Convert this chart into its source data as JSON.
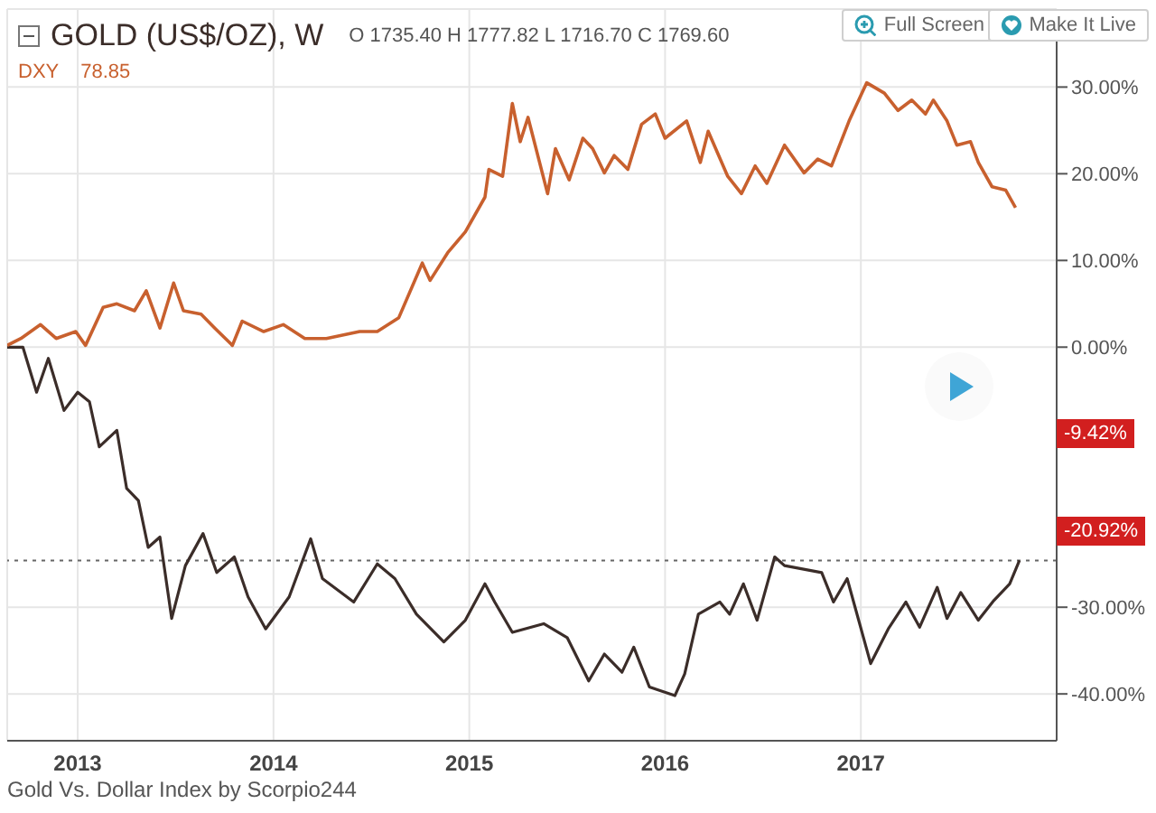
{
  "chart_data": {
    "type": "line",
    "xlim": [
      2012.64,
      2018.0
    ],
    "xticks": [
      2013,
      2014,
      2015,
      2016,
      2017
    ],
    "ylim": [
      -45.4,
      39
    ],
    "yticks": [
      {
        "value": -40,
        "label": "-40.00%"
      },
      {
        "value": -30,
        "label": "-30.00%"
      },
      {
        "value": 0,
        "label": "0.00%"
      },
      {
        "value": 10,
        "label": "10.00%"
      },
      {
        "value": 20,
        "label": "20.00%"
      },
      {
        "value": 30,
        "label": "30.00%"
      }
    ],
    "grid": true,
    "legend": "top left",
    "series": [
      {
        "name": "GOLD (US$/OZ), W",
        "color": "#3b2d29",
        "x": [
          2012.64,
          2012.72,
          2012.79,
          2012.85,
          2012.93,
          2013.0,
          2013.06,
          2013.11,
          2013.2,
          2013.25,
          2013.31,
          2013.36,
          2013.42,
          2013.48,
          2013.55,
          2013.64,
          2013.71,
          2013.8,
          2013.87,
          2013.96,
          2014.08,
          2014.19,
          2014.25,
          2014.41,
          2014.53,
          2014.62,
          2014.73,
          2014.87,
          2014.98,
          2015.08,
          2015.13,
          2015.22,
          2015.38,
          2015.5,
          2015.61,
          2015.69,
          2015.78,
          2015.84,
          2015.92,
          2016.05,
          2016.1,
          2016.17,
          2016.28,
          2016.33,
          2016.4,
          2016.47,
          2016.56,
          2016.61,
          2016.8,
          2016.86,
          2016.93,
          2017.05,
          2017.14,
          2017.23,
          2017.3,
          2017.39,
          2017.44,
          2017.51,
          2017.6,
          2017.68,
          2017.76,
          2017.81
        ],
        "values": [
          0,
          0,
          -5.2,
          -1.3,
          -7.3,
          -5.2,
          -6.3,
          -11.5,
          -9.6,
          -16.3,
          -17.7,
          -23.1,
          -21.9,
          -31.3,
          -25.2,
          -21.5,
          -26.0,
          -24.2,
          -28.8,
          -32.5,
          -28.8,
          -22.1,
          -26.7,
          -29.4,
          -25.0,
          -26.7,
          -30.8,
          -34.0,
          -31.5,
          -27.3,
          -29.4,
          -32.9,
          -31.9,
          -33.5,
          -38.5,
          -35.4,
          -37.5,
          -34.6,
          -39.2,
          -40.2,
          -37.7,
          -30.8,
          -29.4,
          -30.8,
          -27.3,
          -31.5,
          -24.2,
          -25.2,
          -26.0,
          -29.4,
          -26.7,
          -36.5,
          -32.5,
          -29.4,
          -32.3,
          -27.7,
          -31.3,
          -28.3,
          -31.5,
          -29.2,
          -27.3,
          -24.6
        ]
      },
      {
        "name": "DXY",
        "color": "#c8602e",
        "x": [
          2012.64,
          2012.71,
          2012.81,
          2012.89,
          2012.99,
          2013.04,
          2013.13,
          2013.2,
          2013.29,
          2013.35,
          2013.42,
          2013.49,
          2013.54,
          2013.63,
          2013.7,
          2013.79,
          2013.84,
          2013.95,
          2014.05,
          2014.16,
          2014.27,
          2014.44,
          2014.53,
          2014.64,
          2014.76,
          2014.8,
          2014.89,
          2014.98,
          2015.08,
          2015.1,
          2015.17,
          2015.22,
          2015.26,
          2015.3,
          2015.4,
          2015.44,
          2015.51,
          2015.58,
          2015.63,
          2015.69,
          2015.74,
          2015.81,
          2015.88,
          2015.95,
          2016.0,
          2016.11,
          2016.18,
          2016.22,
          2016.32,
          2016.39,
          2016.46,
          2016.52,
          2016.61,
          2016.71,
          2016.78,
          2016.85,
          2016.94,
          2017.03,
          2017.12,
          2017.19,
          2017.26,
          2017.33,
          2017.37,
          2017.44,
          2017.49,
          2017.56,
          2017.6,
          2017.67,
          2017.74,
          2017.79
        ],
        "values": [
          0.2,
          1.0,
          2.6,
          1.0,
          1.8,
          0.2,
          4.6,
          5.0,
          4.2,
          6.5,
          2.2,
          7.4,
          4.2,
          3.8,
          2.2,
          0.2,
          3.0,
          1.8,
          2.6,
          1.0,
          1.0,
          1.8,
          1.8,
          3.4,
          9.7,
          7.7,
          10.9,
          13.3,
          17.3,
          20.5,
          19.7,
          28.1,
          23.7,
          26.5,
          17.7,
          22.9,
          19.3,
          24.1,
          22.9,
          20.1,
          22.1,
          20.5,
          25.7,
          26.9,
          24.1,
          26.1,
          21.3,
          24.9,
          19.7,
          17.7,
          20.9,
          18.9,
          23.3,
          20.1,
          21.7,
          20.9,
          26.1,
          30.5,
          29.3,
          27.3,
          28.5,
          26.9,
          28.5,
          26.1,
          23.3,
          23.7,
          21.3,
          18.5,
          18.1,
          16.1
        ]
      }
    ],
    "ref_lines": [
      {
        "axis": "y",
        "value": -24.6,
        "color": "#666666",
        "line_style": "dotted"
      }
    ],
    "annotations": [
      "O 1735.40 H 1777.82 L 1716.70 C 1769.60",
      "78.85",
      "-9.42%",
      "-20.92%",
      "Full Screen",
      "Make It Live",
      "Gold Vs. Dollar Index by Scorpio244"
    ]
  }
}
